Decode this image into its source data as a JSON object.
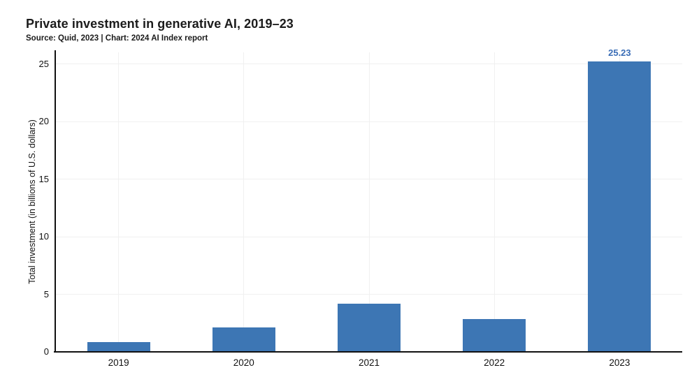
{
  "header": {
    "title": "Private investment in generative AI, 2019–23",
    "subtitle": "Source: Quid, 2023 | Chart: 2024 AI Index report"
  },
  "colors": {
    "bar": "#3d76b4",
    "value_label": "#3a6db6",
    "axis": "#111111",
    "text": "#111111",
    "gridline": "#f0f0f0",
    "background": "#ffffff"
  },
  "chart_data": {
    "type": "bar",
    "title": "Private investment in generative AI, 2019–23",
    "subtitle": "Source: Quid, 2023 | Chart: 2024 AI Index report",
    "categories": [
      "2019",
      "2020",
      "2021",
      "2022",
      "2023"
    ],
    "values": [
      0.85,
      2.1,
      4.2,
      2.85,
      25.23
    ],
    "bar_labels": [
      "",
      "",
      "",
      "",
      "25.23"
    ],
    "xlabel": "",
    "ylabel": "Total investment (in billions of U.S. dollars)",
    "ylim": [
      0,
      26
    ],
    "yticks": [
      0,
      5,
      10,
      15,
      20,
      25
    ],
    "grid": "faint horizontal gridlines at y ticks and faint vertical gridlines at each category",
    "legend": "none"
  }
}
